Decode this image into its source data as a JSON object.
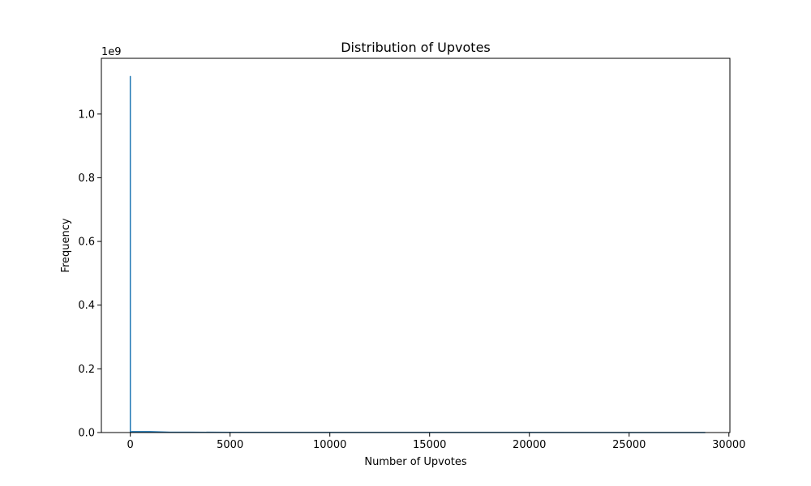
{
  "chart_data": {
    "type": "line",
    "title": "Distribution of Upvotes",
    "xlabel": "Number of Upvotes",
    "ylabel": "Frequency",
    "y_offset_text": "1e9",
    "y_scale_factor": 1000000000,
    "xlim": [
      -1450,
      30050
    ],
    "ylim": [
      0,
      1.175
    ],
    "x_ticks": [
      0,
      5000,
      10000,
      15000,
      20000,
      25000,
      30000
    ],
    "x_tick_labels": [
      "0",
      "5000",
      "10000",
      "15000",
      "20000",
      "25000",
      "30000"
    ],
    "y_ticks": [
      0.0,
      0.2,
      0.4,
      0.6,
      0.8,
      1.0
    ],
    "y_tick_labels": [
      "0.0",
      "0.2",
      "0.4",
      "0.6",
      "0.8",
      "1.0"
    ],
    "grid": false,
    "legend": "none",
    "series": [
      {
        "color": "#1f77b4",
        "x": [
          0,
          1,
          100,
          200,
          500,
          1000,
          1500,
          2000,
          3000,
          5000,
          10000,
          15000,
          20000,
          25000,
          28800
        ],
        "y": [
          1.118,
          0.002,
          0.003,
          0.003,
          0.003,
          0.003,
          0.002,
          0.001,
          0.001,
          0.0005,
          0.0003,
          0.0002,
          0.0002,
          0.0001,
          0.0001
        ]
      }
    ]
  }
}
